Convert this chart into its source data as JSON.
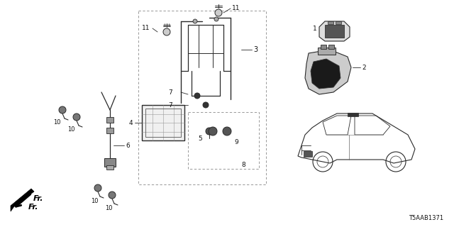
{
  "bg_color": "#ffffff",
  "diagram_id": "T5AAB1371",
  "line_color": "#2a2a2a",
  "text_color": "#111111",
  "figsize": [
    6.4,
    3.2
  ],
  "dpi": 100
}
